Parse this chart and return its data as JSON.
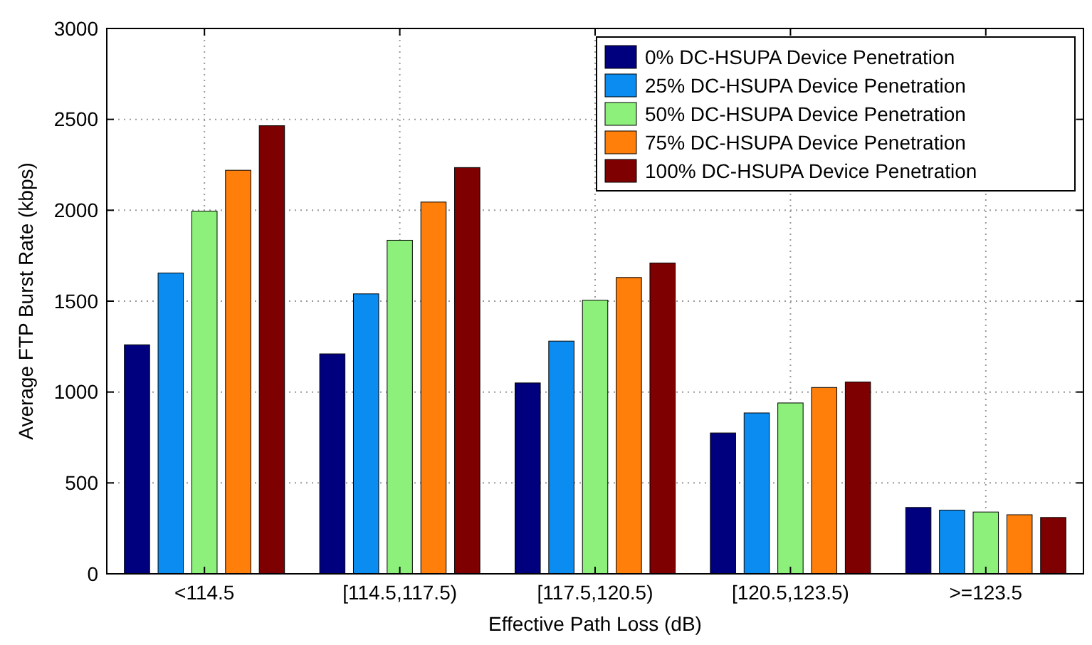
{
  "chart_data": {
    "type": "bar",
    "xlabel": "Effective Path Loss (dB)",
    "ylabel": "Average FTP Burst Rate (kbps)",
    "categories": [
      "<114.5",
      "[114.5,117.5)",
      "[117.5,120.5)",
      "[120.5,123.5)",
      ">=123.5"
    ],
    "series": [
      {
        "name": "0% DC-HSUPA Device Penetration",
        "color": "#00007f",
        "values": [
          1260,
          1210,
          1050,
          775,
          365
        ]
      },
      {
        "name": "25% DC-HSUPA Device Penetration",
        "color": "#0a8cf0",
        "values": [
          1655,
          1540,
          1280,
          885,
          350
        ]
      },
      {
        "name": "50% DC-HSUPA Device Penetration",
        "color": "#8cf07a",
        "values": [
          1995,
          1835,
          1505,
          940,
          340
        ]
      },
      {
        "name": "75% DC-HSUPA Device Penetration",
        "color": "#ff7f0a",
        "values": [
          2220,
          2045,
          1630,
          1025,
          325
        ]
      },
      {
        "name": "100% DC-HSUPA Device Penetration",
        "color": "#7f0000",
        "values": [
          2465,
          2235,
          1710,
          1055,
          310
        ]
      }
    ],
    "ylim": [
      0,
      3000
    ],
    "yticks": [
      0,
      500,
      1000,
      1500,
      2000,
      2500,
      3000
    ],
    "grid": true,
    "legend": "top right"
  }
}
